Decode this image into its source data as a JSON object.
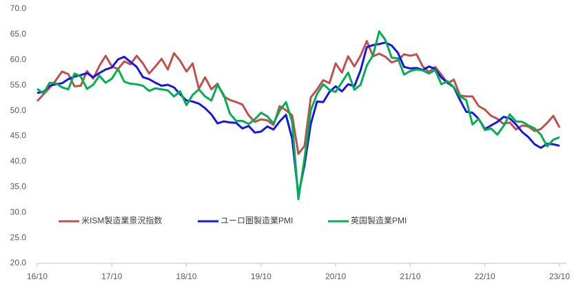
{
  "chart_data": {
    "type": "line",
    "categories": [
      "16/10",
      null,
      null,
      null,
      null,
      null,
      null,
      null,
      null,
      null,
      null,
      null,
      "17/10",
      null,
      null,
      null,
      null,
      null,
      null,
      null,
      null,
      null,
      null,
      null,
      "18/10",
      null,
      null,
      null,
      null,
      null,
      null,
      null,
      null,
      null,
      null,
      null,
      "19/10",
      null,
      null,
      null,
      null,
      null,
      null,
      null,
      null,
      null,
      null,
      null,
      "20/10",
      null,
      null,
      null,
      null,
      null,
      null,
      null,
      null,
      null,
      null,
      null,
      "21/10",
      null,
      null,
      null,
      null,
      null,
      null,
      null,
      null,
      null,
      null,
      null,
      "22/10",
      null,
      null,
      null,
      null,
      null,
      null,
      null,
      null,
      null,
      null,
      null,
      "23/10"
    ],
    "series": [
      {
        "name": "米ISM製造業景況指数",
        "color": "#c0504d",
        "values": [
          51.9,
          53.2,
          54.5,
          56.0,
          57.7,
          57.2,
          54.8,
          54.9,
          57.8,
          56.3,
          58.8,
          60.8,
          58.7,
          58.2,
          59.7,
          59.1,
          60.8,
          59.3,
          57.3,
          58.7,
          60.2,
          58.1,
          61.3,
          59.8,
          57.7,
          59.3,
          54.3,
          56.6,
          54.2,
          55.3,
          52.8,
          52.1,
          51.7,
          51.2,
          49.1,
          47.8,
          48.3,
          48.1,
          47.2,
          50.9,
          50.1,
          49.1,
          41.5,
          43.1,
          52.6,
          54.2,
          56.0,
          55.4,
          59.3,
          57.5,
          60.7,
          58.7,
          60.8,
          63.7,
          60.7,
          61.2,
          60.6,
          59.5,
          59.9,
          61.1,
          60.8,
          61.1,
          58.7,
          57.6,
          58.6,
          57.1,
          55.4,
          56.1,
          53.0,
          52.8,
          52.8,
          50.9,
          50.2,
          49.0,
          48.4,
          47.4,
          47.7,
          46.3,
          47.1,
          46.9,
          46.0,
          46.4,
          47.6,
          49.0,
          46.7
        ]
      },
      {
        "name": "ユーロ圏製造業PMI",
        "color": "#1515e6",
        "values": [
          53.5,
          53.7,
          54.9,
          55.2,
          55.4,
          56.2,
          56.7,
          57.0,
          57.4,
          56.6,
          57.4,
          58.1,
          58.5,
          60.1,
          60.6,
          59.6,
          58.6,
          56.6,
          56.2,
          55.5,
          54.9,
          55.1,
          54.6,
          53.2,
          52.0,
          51.8,
          51.4,
          50.5,
          49.3,
          47.5,
          47.9,
          47.7,
          47.6,
          46.5,
          47.0,
          45.7,
          45.9,
          46.9,
          46.3,
          47.9,
          49.2,
          44.5,
          33.4,
          39.4,
          47.4,
          51.8,
          51.7,
          53.7,
          54.8,
          53.8,
          55.2,
          54.8,
          57.9,
          62.5,
          62.9,
          63.1,
          63.4,
          62.8,
          61.4,
          58.6,
          58.3,
          58.4,
          58.0,
          58.7,
          58.2,
          56.5,
          55.5,
          54.6,
          52.1,
          49.8,
          49.6,
          48.4,
          46.4,
          47.1,
          47.8,
          48.8,
          48.5,
          47.3,
          45.8,
          44.8,
          43.4,
          42.7,
          43.5,
          43.4,
          43.1
        ]
      },
      {
        "name": "英国製造業PMI",
        "color": "#00b050",
        "values": [
          54.3,
          53.4,
          55.5,
          55.4,
          54.6,
          54.2,
          57.3,
          56.7,
          54.3,
          55.1,
          56.9,
          55.5,
          56.3,
          58.2,
          55.7,
          55.3,
          55.2,
          54.9,
          53.9,
          54.4,
          54.2,
          54.0,
          52.8,
          53.8,
          51.1,
          53.1,
          54.2,
          52.8,
          52.0,
          55.1,
          53.1,
          49.4,
          48.0,
          48.0,
          47.4,
          48.3,
          49.6,
          48.9,
          47.5,
          50.0,
          51.7,
          47.8,
          32.6,
          40.7,
          50.1,
          53.3,
          55.2,
          54.1,
          53.7,
          55.6,
          57.5,
          54.1,
          55.1,
          58.9,
          60.9,
          65.6,
          63.9,
          60.4,
          60.3,
          57.1,
          57.8,
          58.1,
          57.9,
          57.3,
          58.0,
          55.2,
          55.8,
          54.6,
          52.8,
          52.1,
          47.3,
          48.4,
          46.2,
          46.5,
          45.3,
          47.0,
          49.3,
          47.9,
          47.8,
          47.1,
          46.5,
          45.3,
          43.0,
          44.3,
          44.8
        ]
      }
    ],
    "ylim": [
      20,
      70
    ],
    "yticks": [
      {
        "value": 20,
        "label": "20.0"
      },
      {
        "value": 25,
        "label": "25.0"
      },
      {
        "value": 30,
        "label": "30.0"
      },
      {
        "value": 35,
        "label": "35.0"
      },
      {
        "value": 40,
        "label": "40.0"
      },
      {
        "value": 45,
        "label": "45.0"
      },
      {
        "value": 50,
        "label": "50.0"
      },
      {
        "value": 55,
        "label": "55.0"
      },
      {
        "value": 60,
        "label": "60.0"
      },
      {
        "value": 65,
        "label": "65.0"
      },
      {
        "value": 70,
        "label": "70.0"
      }
    ],
    "grid": false,
    "legend": "bottom-left"
  }
}
